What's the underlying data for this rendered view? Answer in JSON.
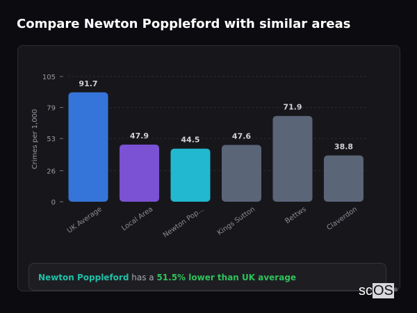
{
  "title": "Compare Newton Poppleford with similar areas",
  "chart_data": {
    "type": "bar",
    "ylabel": "Crimes per 1,000",
    "xlabel": "",
    "ylim": [
      0,
      105
    ],
    "yticks": [
      0,
      26,
      53,
      79,
      105
    ],
    "grid": true,
    "categories": [
      "UK Average",
      "Local Area",
      "Newton Pop...",
      "Kings Sutton",
      "Bettws",
      "Claverdon"
    ],
    "values": [
      91.7,
      47.9,
      44.5,
      47.6,
      71.9,
      38.8
    ],
    "data_labels": [
      "91.7",
      "47.9",
      "44.5",
      "47.6",
      "71.9",
      "38.8"
    ],
    "colors": [
      "#3574d9",
      "#7b52d4",
      "#22b8d0",
      "#5a6578",
      "#5a6578",
      "#5a6578"
    ]
  },
  "insight": {
    "area": "Newton Poppleford",
    "middle": " has a ",
    "result": "51.5% lower than UK average",
    "area_color": "#1fc0a8",
    "result_color": "#2fc25c"
  },
  "logo": {
    "text_a": "sc",
    "text_b": "OS",
    "mark": "®"
  }
}
